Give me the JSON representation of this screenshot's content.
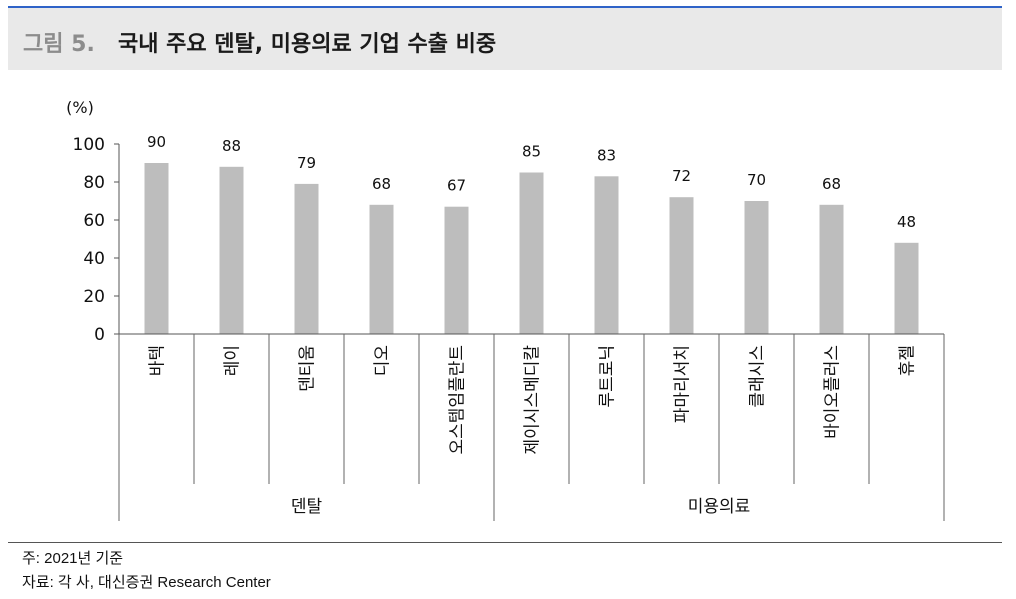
{
  "header": {
    "figure_label": "그림 5.",
    "title": "국내 주요 덴탈, 미용의료 기업 수출 비중"
  },
  "chart_data": {
    "type": "bar",
    "ylabel": "(%)",
    "ylim": [
      0,
      100
    ],
    "yticks": [
      0,
      20,
      40,
      60,
      80,
      100
    ],
    "categories": [
      "바텍",
      "레이",
      "덴티움",
      "디오",
      "오스템임플란트",
      "제이시스메디칼",
      "루트로닉",
      "파마리서치",
      "클래시스",
      "바이오플러스",
      "휴젤"
    ],
    "values": [
      90,
      88,
      79,
      68,
      67,
      85,
      83,
      72,
      70,
      68,
      48
    ],
    "groups": [
      {
        "label": "덴탈",
        "start": 0,
        "end": 4
      },
      {
        "label": "미용의료",
        "start": 5,
        "end": 10
      }
    ],
    "bar_color": "#bdbdbd",
    "grid": false,
    "legend": "none"
  },
  "footer": {
    "note": "주: 2021년 기준",
    "source": "자료: 각 사, 대신증권 Research Center"
  }
}
